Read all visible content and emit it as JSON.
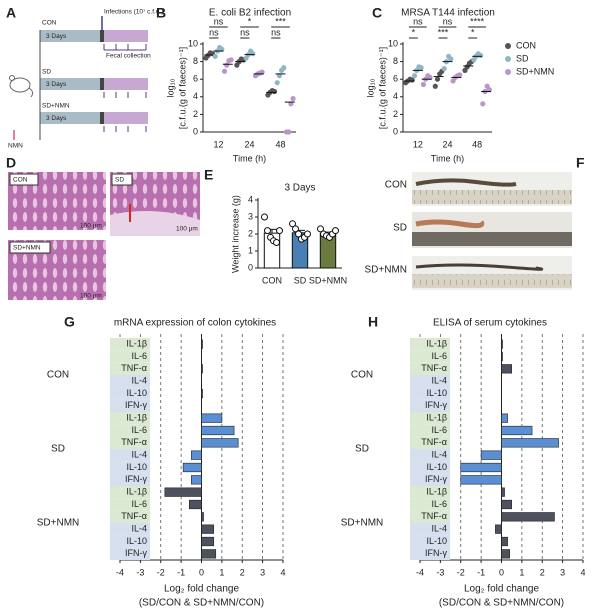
{
  "panel_letters": [
    "A",
    "B",
    "C",
    "D",
    "E",
    "F",
    "G",
    "H"
  ],
  "schematic": {
    "infections": "Infections (10⁷ c.f.u.)",
    "fecal": "Fecal collection",
    "nmn": "NMN",
    "groups": [
      {
        "name": "CON",
        "duration": "3 Days"
      },
      {
        "name": "SD",
        "duration": "3 Days"
      },
      {
        "name": "SD+NMN",
        "duration": "3 Days"
      }
    ]
  },
  "histology": {
    "labels": [
      "CON",
      "SD",
      "SD+NMN"
    ],
    "scale_bars": [
      "100 μm",
      "100 μm",
      "100 μm"
    ]
  },
  "colon_photos": {
    "labels": [
      "CON",
      "SD",
      "SD+NMN"
    ]
  },
  "chart_data": [
    {
      "type": "strip",
      "title": "E. coli B2 infection",
      "xlabel": "Time (h)",
      "ylabel": [
        "log₁₀",
        "[c.f.u.(g of faeces)⁻¹]"
      ],
      "categories": [
        "12",
        "24",
        "48"
      ],
      "ylim": [
        0,
        10
      ],
      "yticks": [
        0,
        2,
        4,
        6,
        8,
        10
      ],
      "significance": [
        [
          "ns",
          "ns"
        ],
        [
          "*",
          "ns"
        ],
        [
          "***",
          "ns"
        ]
      ],
      "series": [
        {
          "color": "#555555",
          "values": [
            8.75,
            8.0,
            4.5
          ],
          "points": [
            [
              8.4,
              8.7,
              9.0,
              8.9
            ],
            [
              7.6,
              8.0,
              8.3,
              8.2
            ],
            [
              4.2,
              4.5,
              4.7,
              4.6
            ]
          ]
        },
        {
          "color": "#8fb6c6",
          "values": [
            9.2,
            8.8,
            6.6
          ],
          "points": [
            [
              8.6,
              9.2,
              9.6,
              9.4
            ],
            [
              8.4,
              8.8,
              9.2,
              8.9
            ],
            [
              5.6,
              6.4,
              7.0,
              7.3
            ]
          ]
        },
        {
          "color": "#b995c9",
          "values": [
            7.7,
            6.6,
            3.4
          ],
          "points": [
            [
              6.9,
              7.6,
              8.1,
              8.2
            ],
            [
              6.4,
              6.6,
              6.7,
              6.8
            ],
            [
              0,
              0,
              3.2,
              3.8
            ]
          ]
        }
      ]
    },
    {
      "type": "strip",
      "title": "MRSA T144 infection",
      "xlabel": "Time (h)",
      "ylabel": [
        "log₁₀",
        "[c.f.u.(g of faeces)⁻¹]"
      ],
      "categories": [
        "12",
        "24",
        "48"
      ],
      "ylim": [
        0,
        10
      ],
      "yticks": [
        0,
        2,
        4,
        6,
        8,
        10
      ],
      "legend": "right",
      "significance": [
        [
          "ns",
          "*"
        ],
        [
          "ns",
          "***"
        ],
        [
          "****",
          "*"
        ]
      ],
      "series": [
        {
          "name": "CON",
          "color": "#555555",
          "values": [
            5.8,
            6.3,
            7.5
          ],
          "points": [
            [
              5.6,
              5.8,
              6.0,
              5.9
            ],
            [
              5.2,
              6.0,
              6.6,
              6.9
            ],
            [
              7.0,
              7.4,
              7.8,
              8.0
            ]
          ]
        },
        {
          "name": "SD",
          "color": "#8fb6c6",
          "values": [
            7.0,
            8.0,
            8.6
          ],
          "points": [
            [
              6.4,
              7.0,
              7.4,
              7.3
            ],
            [
              7.2,
              8.0,
              8.6,
              8.3
            ],
            [
              8.2,
              8.6,
              8.9,
              8.7
            ]
          ]
        },
        {
          "name": "SD+NMN",
          "color": "#b995c9",
          "values": [
            6.0,
            6.2,
            4.6
          ],
          "points": [
            [
              5.4,
              6.0,
              6.4,
              6.2
            ],
            [
              5.8,
              6.2,
              6.4,
              6.5
            ],
            [
              3.2,
              4.6,
              5.2,
              4.8
            ]
          ]
        }
      ]
    },
    {
      "type": "bar",
      "title": "3 Days",
      "ylabel": "Weight increase (g)",
      "categories": [
        "CON",
        "SD",
        "SD+NMN"
      ],
      "values": [
        2.05,
        2.07,
        2.03
      ],
      "errors": [
        0.22,
        0.14,
        0.08
      ],
      "colors": [
        "#ffffff",
        "#4a7fb5",
        "#6b7a3f"
      ],
      "points": [
        [
          3.0,
          2.2,
          1.8,
          1.6,
          1.5,
          2.2
        ],
        [
          2.6,
          2.3,
          2.0,
          1.7,
          1.8,
          2.0
        ],
        [
          2.3,
          2.0,
          1.9,
          1.8,
          2.0,
          2.2
        ]
      ],
      "ylim": [
        0,
        4
      ],
      "yticks": [
        0,
        1,
        2,
        3,
        4
      ]
    },
    {
      "type": "hbar",
      "title": "mRNA expression of colon cytokines",
      "xlabel": [
        "Log₂ fold change",
        "(SD/CON & SD+NMN/CON)"
      ],
      "xlim": [
        -4,
        4
      ],
      "xticks": [
        -4,
        -3,
        -2,
        -1,
        0,
        1,
        2,
        3,
        4
      ],
      "grid": true,
      "label_colors": [
        "#dbe9d2",
        "#dbe9d2",
        "#dbe9d2",
        "#d5dfee",
        "#d5dfee",
        "#d5dfee"
      ],
      "groups": [
        {
          "name": "CON",
          "color": "#4d525e",
          "categories": [
            "IL-1β",
            "IL-6",
            "TNF-α",
            "IL-4",
            "IL-10",
            "IFN-γ"
          ],
          "values": [
            0.05,
            0.0,
            0.05,
            0.0,
            0.05,
            0.0
          ]
        },
        {
          "name": "SD",
          "color": "#5b8fd3",
          "categories": [
            "IL-1β",
            "IL-6",
            "TNF-α",
            "IL-4",
            "IL-10",
            "IFN-γ"
          ],
          "values": [
            1.0,
            1.6,
            1.8,
            -0.5,
            -0.9,
            -0.5
          ]
        },
        {
          "name": "SD+NMN",
          "color": "#4d525e",
          "categories": [
            "IL-1β",
            "IL-6",
            "TNF-α",
            "IL-4",
            "IL-10",
            "IFN-γ"
          ],
          "values": [
            -1.8,
            -0.6,
            0.1,
            0.6,
            0.6,
            0.7
          ]
        }
      ]
    },
    {
      "type": "hbar",
      "title": "ELISA of serum cytokines",
      "xlabel": [
        "Log₂ fold change",
        "(SD/CON & SD+NMN/CON)"
      ],
      "xlim": [
        -4,
        4
      ],
      "xticks": [
        -4,
        -3,
        -2,
        -1,
        0,
        1,
        2,
        3,
        4
      ],
      "grid": true,
      "label_colors": [
        "#dbe9d2",
        "#dbe9d2",
        "#dbe9d2",
        "#d5dfee",
        "#d5dfee",
        "#d5dfee"
      ],
      "groups": [
        {
          "name": "CON",
          "color": "#4d525e",
          "categories": [
            "IL-1β",
            "IL-6",
            "TNF-α",
            "IL-4",
            "IL-10",
            "IFN-γ"
          ],
          "values": [
            0.05,
            0.05,
            0.5,
            0.0,
            0.0,
            0.0
          ]
        },
        {
          "name": "SD",
          "color": "#5b8fd3",
          "categories": [
            "IL-1β",
            "IL-6",
            "TNF-α",
            "IL-4",
            "IL-10",
            "IFN-γ"
          ],
          "values": [
            0.3,
            1.5,
            2.8,
            -1.0,
            -2.0,
            -2.0
          ]
        },
        {
          "name": "SD+NMN",
          "color": "#4d525e",
          "categories": [
            "IL-1β",
            "IL-6",
            "TNF-α",
            "IL-4",
            "IL-10",
            "IFN-γ"
          ],
          "values": [
            0.15,
            0.5,
            2.6,
            -0.3,
            0.3,
            0.4
          ]
        }
      ]
    }
  ]
}
